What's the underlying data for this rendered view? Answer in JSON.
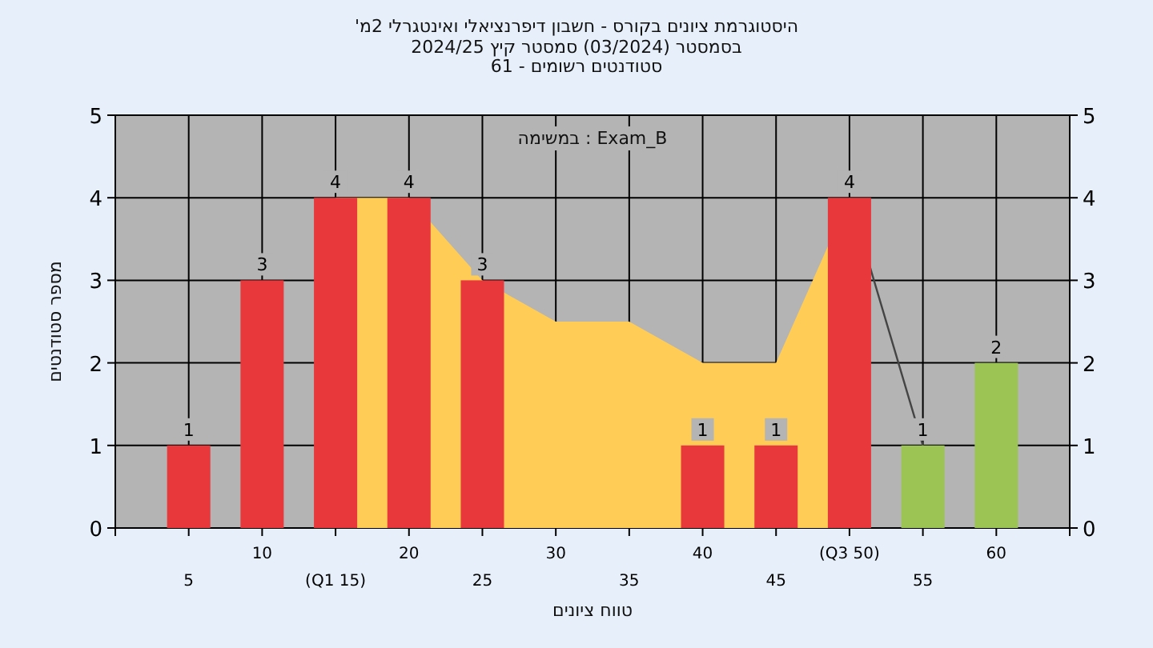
{
  "chart_data": {
    "type": "bar",
    "title": "'היסטוגרמת ציונים בקורס - חשבון דיפרנציאלי ואינטגרלי 2מ",
    "subtitle": [
      "בסמסטר (03/2024) סמסטר קיץ 2024/25",
      "סטודנטים רשומים - 61"
    ],
    "xlabel": "טווח ציונים",
    "ylabel": "מספר סטודנטים",
    "annotations": [
      "במשימה : Exam_B"
    ],
    "categories": [
      "5",
      "10",
      "(Q1 15)",
      "20",
      "25",
      "30",
      "35",
      "40",
      "45",
      "(Q3 50)",
      "55",
      "60"
    ],
    "series": [
      {
        "type": "area",
        "color": "#ffcc55",
        "values": [
          null,
          null,
          4,
          4,
          3,
          2.5,
          2.5,
          2,
          2,
          4,
          null,
          null
        ]
      },
      {
        "type": "line",
        "color": "#444444",
        "values": [
          null,
          null,
          null,
          null,
          null,
          null,
          null,
          null,
          null,
          4,
          1,
          null
        ]
      },
      {
        "colors": [
          "#e8383c",
          "#e8383c",
          "#e8383c",
          "#e8383c",
          "#e8383c",
          "#e8383c",
          "#e8383c",
          "#e8383c",
          "#e8383c",
          "#e8383c",
          "#9cc454",
          "#9cc454"
        ],
        "values": [
          1,
          3,
          4,
          4,
          3,
          0,
          0,
          1,
          1,
          4,
          1,
          2
        ],
        "value_labels": [
          "1",
          "3",
          "4",
          "4",
          "3",
          null,
          null,
          "1",
          "1",
          "4",
          "1",
          "2"
        ]
      }
    ],
    "ylim": [
      0,
      5
    ],
    "yticks": [
      0,
      1,
      2,
      3,
      4,
      5
    ],
    "y2lim": [
      0,
      5
    ],
    "y2ticks": [
      0,
      1,
      2,
      3,
      4,
      5
    ],
    "grid": true
  }
}
